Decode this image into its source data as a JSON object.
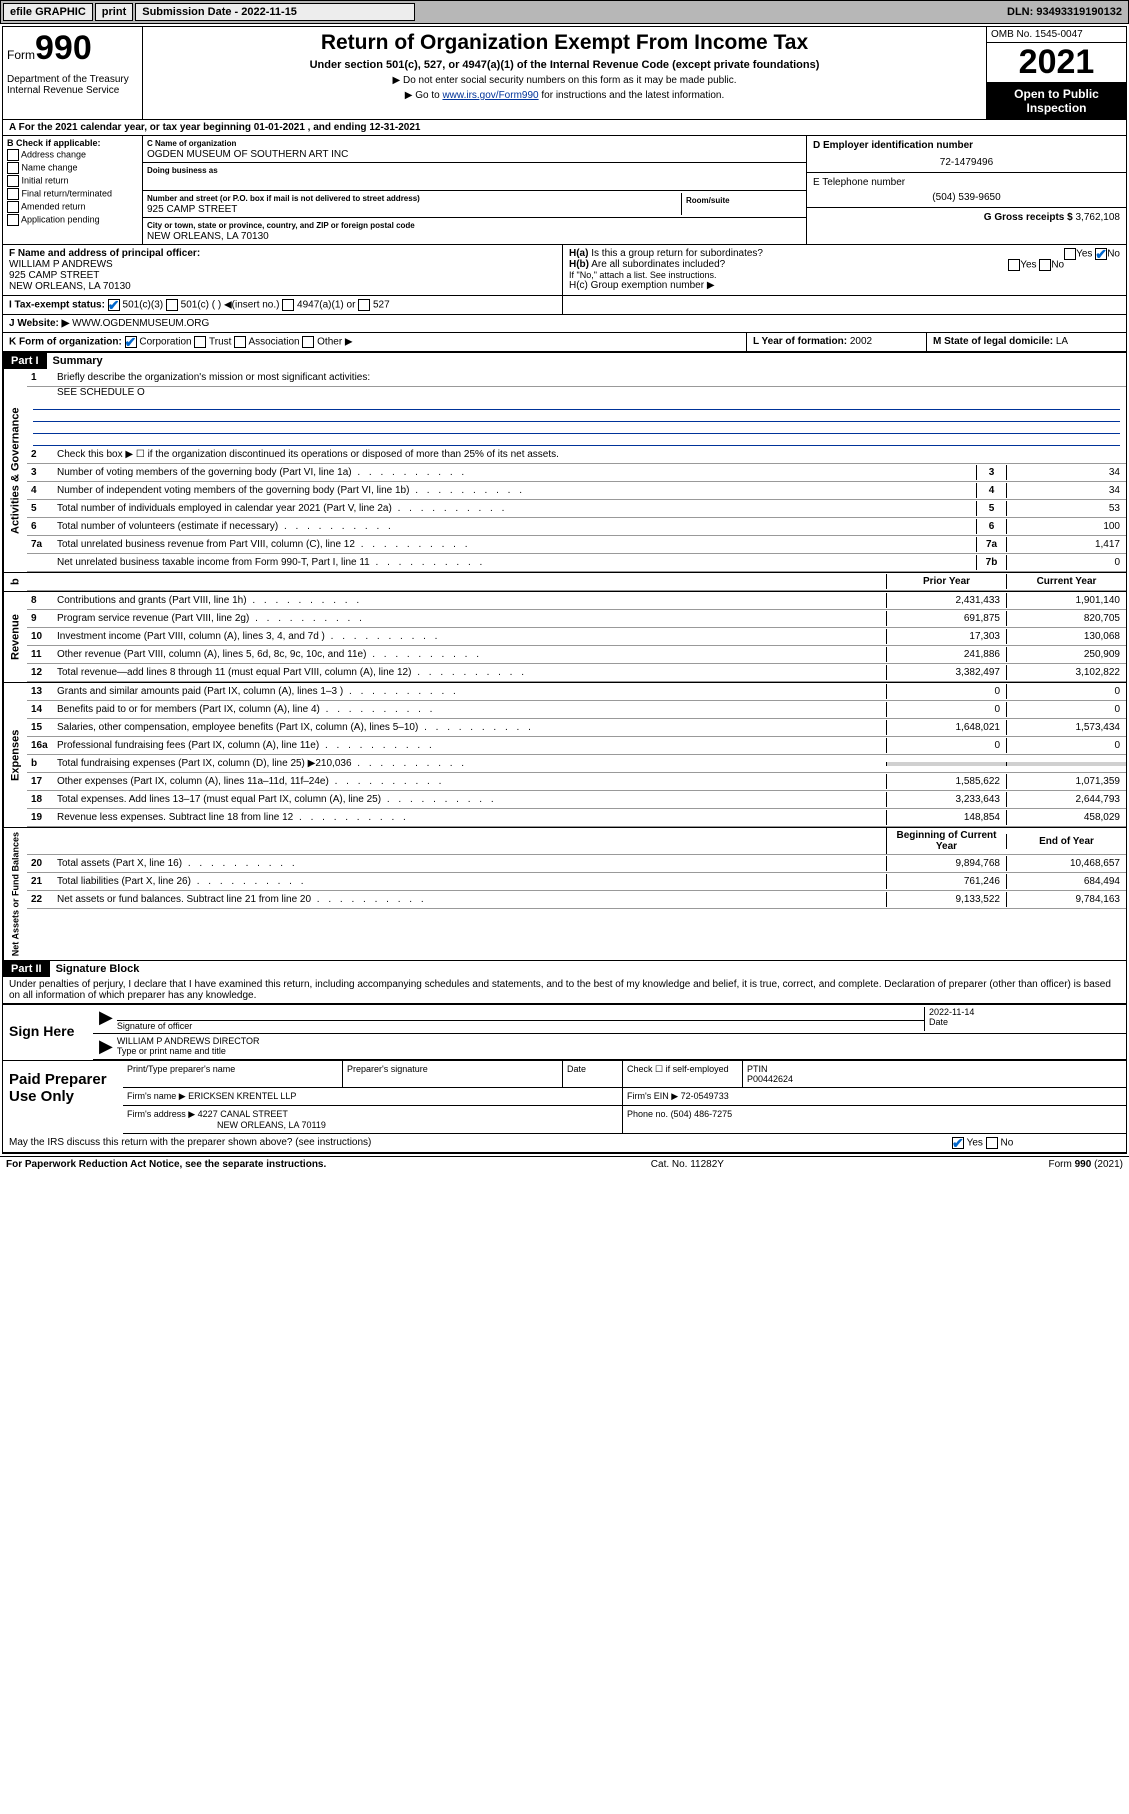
{
  "topbar": {
    "efile": "efile GRAPHIC",
    "print": "print",
    "sub_label": "Submission Date - 2022-11-15",
    "dln": "DLN: 93493319190132"
  },
  "header": {
    "form_prefix": "Form",
    "form_num": "990",
    "dept": "Department of the Treasury\nInternal Revenue Service",
    "title": "Return of Organization Exempt From Income Tax",
    "sub": "Under section 501(c), 527, or 4947(a)(1) of the Internal Revenue Code (except private foundations)",
    "note1": "▶ Do not enter social security numbers on this form as it may be made public.",
    "note2": "▶ Go to",
    "note2_link": "www.irs.gov/Form990",
    "note2_suffix": "for instructions and the latest information.",
    "omb": "OMB No. 1545-0047",
    "year": "2021",
    "opento": "Open to Public Inspection"
  },
  "row_a": "A For the 2021 calendar year, or tax year beginning 01-01-2021   , and ending 12-31-2021",
  "col_b": {
    "label": "B Check if applicable:",
    "items": [
      "Address change",
      "Name change",
      "Initial return",
      "Final return/terminated",
      "Amended return",
      "Application pending"
    ]
  },
  "col_c": {
    "name_lbl": "C Name of organization",
    "name": "OGDEN MUSEUM OF SOUTHERN ART INC",
    "dba_lbl": "Doing business as",
    "dba": "",
    "addr_lbl": "Number and street (or P.O. box if mail is not delivered to street address)",
    "addr": "925 CAMP STREET",
    "room_lbl": "Room/suite",
    "city_lbl": "City or town, state or province, country, and ZIP or foreign postal code",
    "city": "NEW ORLEANS, LA  70130"
  },
  "col_de": {
    "d_lbl": "D Employer identification number",
    "ein": "72-1479496",
    "e_lbl": "E Telephone number",
    "phone": "(504) 539-9650",
    "g_lbl": "G Gross receipts $",
    "g_val": "3,762,108"
  },
  "row_f": {
    "lbl": "F Name and address of principal officer:",
    "name": "WILLIAM P ANDREWS",
    "addr1": "925 CAMP STREET",
    "addr2": "NEW ORLEANS, LA  70130"
  },
  "row_h": {
    "ha": "H(a)  Is this a group return for subordinates?",
    "hb": "H(b)  Are all subordinates included?",
    "hb_note": "If \"No,\" attach a list. See instructions.",
    "hc": "H(c)  Group exemption number ▶"
  },
  "row_i": {
    "lbl": "I    Tax-exempt status:",
    "opts": [
      "501(c)(3)",
      "501(c) (  ) ◀(insert no.)",
      "4947(a)(1) or",
      "527"
    ]
  },
  "row_j": {
    "lbl": "J   Website: ▶",
    "val": "WWW.OGDENMUSEUM.ORG"
  },
  "row_k": {
    "lbl": "K Form of organization:",
    "opts": [
      "Corporation",
      "Trust",
      "Association",
      "Other ▶"
    ],
    "l_lbl": "L Year of formation:",
    "l_val": "2002",
    "m_lbl": "M State of legal domicile:",
    "m_val": "LA"
  },
  "part1": {
    "hdr": "Part I",
    "title": "Summary",
    "q1": "Briefly describe the organization's mission or most significant activities:",
    "q1_val": "SEE SCHEDULE O",
    "q2": "Check this box ▶ ☐  if the organization discontinued its operations or disposed of more than 25% of its net assets."
  },
  "sidelabels": {
    "gov": "Activities & Governance",
    "rev": "Revenue",
    "exp": "Expenses",
    "net": "Net Assets or Fund Balances"
  },
  "lines_a": [
    {
      "n": "3",
      "d": "Number of voting members of the governing body (Part VI, line 1a)",
      "b": "3",
      "v": "34"
    },
    {
      "n": "4",
      "d": "Number of independent voting members of the governing body (Part VI, line 1b)",
      "b": "4",
      "v": "34"
    },
    {
      "n": "5",
      "d": "Total number of individuals employed in calendar year 2021 (Part V, line 2a)",
      "b": "5",
      "v": "53"
    },
    {
      "n": "6",
      "d": "Total number of volunteers (estimate if necessary)",
      "b": "6",
      "v": "100"
    },
    {
      "n": "7a",
      "d": "Total unrelated business revenue from Part VIII, column (C), line 12",
      "b": "7a",
      "v": "1,417"
    },
    {
      "n": "",
      "d": "Net unrelated business taxable income from Form 990-T, Part I, line 11",
      "b": "7b",
      "v": "0"
    }
  ],
  "col_hdrs": {
    "prior": "Prior Year",
    "curr": "Current Year",
    "boy": "Beginning of Current Year",
    "eoy": "End of Year"
  },
  "lines_rev": [
    {
      "n": "8",
      "d": "Contributions and grants (Part VIII, line 1h)",
      "p": "2,431,433",
      "c": "1,901,140"
    },
    {
      "n": "9",
      "d": "Program service revenue (Part VIII, line 2g)",
      "p": "691,875",
      "c": "820,705"
    },
    {
      "n": "10",
      "d": "Investment income (Part VIII, column (A), lines 3, 4, and 7d )",
      "p": "17,303",
      "c": "130,068"
    },
    {
      "n": "11",
      "d": "Other revenue (Part VIII, column (A), lines 5, 6d, 8c, 9c, 10c, and 11e)",
      "p": "241,886",
      "c": "250,909"
    },
    {
      "n": "12",
      "d": "Total revenue—add lines 8 through 11 (must equal Part VIII, column (A), line 12)",
      "p": "3,382,497",
      "c": "3,102,822"
    }
  ],
  "lines_exp": [
    {
      "n": "13",
      "d": "Grants and similar amounts paid (Part IX, column (A), lines 1–3 )",
      "p": "0",
      "c": "0"
    },
    {
      "n": "14",
      "d": "Benefits paid to or for members (Part IX, column (A), line 4)",
      "p": "0",
      "c": "0"
    },
    {
      "n": "15",
      "d": "Salaries, other compensation, employee benefits (Part IX, column (A), lines 5–10)",
      "p": "1,648,021",
      "c": "1,573,434"
    },
    {
      "n": "16a",
      "d": "Professional fundraising fees (Part IX, column (A), line 11e)",
      "p": "0",
      "c": "0"
    },
    {
      "n": "b",
      "d": "Total fundraising expenses (Part IX, column (D), line 25) ▶210,036",
      "p": "",
      "c": "",
      "grey": true
    },
    {
      "n": "17",
      "d": "Other expenses (Part IX, column (A), lines 11a–11d, 11f–24e)",
      "p": "1,585,622",
      "c": "1,071,359"
    },
    {
      "n": "18",
      "d": "Total expenses. Add lines 13–17 (must equal Part IX, column (A), line 25)",
      "p": "3,233,643",
      "c": "2,644,793"
    },
    {
      "n": "19",
      "d": "Revenue less expenses. Subtract line 18 from line 12",
      "p": "148,854",
      "c": "458,029"
    }
  ],
  "lines_net": [
    {
      "n": "20",
      "d": "Total assets (Part X, line 16)",
      "p": "9,894,768",
      "c": "10,468,657"
    },
    {
      "n": "21",
      "d": "Total liabilities (Part X, line 26)",
      "p": "761,246",
      "c": "684,494"
    },
    {
      "n": "22",
      "d": "Net assets or fund balances. Subtract line 21 from line 20",
      "p": "9,133,522",
      "c": "9,784,163"
    }
  ],
  "part2": {
    "hdr": "Part II",
    "title": "Signature Block",
    "decl": "Under penalties of perjury, I declare that I have examined this return, including accompanying schedules and statements, and to the best of my knowledge and belief, it is true, correct, and complete. Declaration of preparer (other than officer) is based on all information of which preparer has any knowledge."
  },
  "sign": {
    "lbl": "Sign Here",
    "sig_lbl": "Signature of officer",
    "date_lbl": "Date",
    "date": "2022-11-14",
    "name": "WILLIAM P ANDREWS  DIRECTOR",
    "name_lbl": "Type or print name and title"
  },
  "prep": {
    "lbl": "Paid Preparer Use Only",
    "c1": "Print/Type preparer's name",
    "c2": "Preparer's signature",
    "c3": "Date",
    "c4": "Check ☐ if self-employed",
    "c5_lbl": "PTIN",
    "c5": "P00442624",
    "firm_lbl": "Firm's name   ▶",
    "firm": "ERICKSEN KRENTEL LLP",
    "ein_lbl": "Firm's EIN ▶",
    "ein": "72-0549733",
    "addr_lbl": "Firm's address ▶",
    "addr": "4227 CANAL STREET",
    "city": "NEW ORLEANS, LA  70119",
    "phone_lbl": "Phone no.",
    "phone": "(504) 486-7275"
  },
  "discuss": "May the IRS discuss this return with the preparer shown above? (see instructions)",
  "footer": {
    "left": "For Paperwork Reduction Act Notice, see the separate instructions.",
    "mid": "Cat. No. 11282Y",
    "right": "Form 990 (2021)"
  }
}
